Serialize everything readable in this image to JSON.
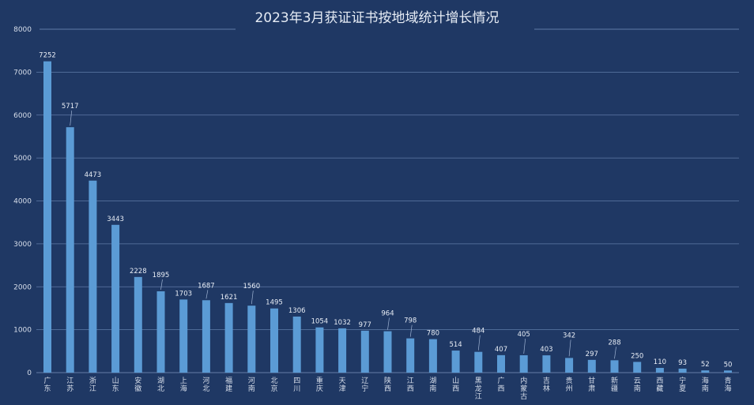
{
  "chart_data": {
    "type": "bar",
    "title": "2023年3月获证证书按地域统计增长情况",
    "xlabel": "",
    "ylabel": "",
    "ylim": [
      0,
      8000
    ],
    "yticks": [
      0,
      1000,
      2000,
      3000,
      4000,
      5000,
      6000,
      7000,
      8000
    ],
    "grid": true,
    "categories": [
      "广东",
      "江苏",
      "浙江",
      "山东",
      "安徽",
      "湖北",
      "上海",
      "河北",
      "福建",
      "河南",
      "北京",
      "四川",
      "重庆",
      "天津",
      "辽宁",
      "陕西",
      "江西",
      "湖南",
      "山西",
      "黑龙江",
      "广西",
      "内蒙古",
      "吉林",
      "贵州",
      "甘肃",
      "新疆",
      "云南",
      "西藏",
      "宁夏",
      "海南",
      "青海"
    ],
    "values": [
      7252,
      5717,
      4473,
      3443,
      2228,
      1895,
      1703,
      1687,
      1621,
      1560,
      1495,
      1306,
      1054,
      1032,
      977,
      964,
      798,
      780,
      514,
      484,
      407,
      405,
      403,
      342,
      297,
      288,
      250,
      110,
      93,
      52,
      50
    ],
    "colors": {
      "background": "#1f3864",
      "bar": "#5b9bd5",
      "grid": "#5f7aa6",
      "text": "#d7deea"
    }
  }
}
